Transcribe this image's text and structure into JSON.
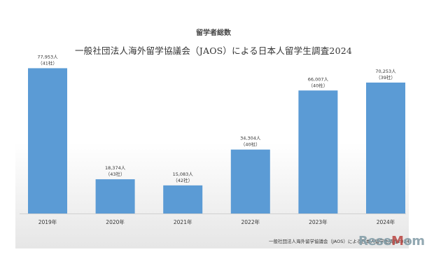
{
  "title": "留学者総数",
  "subtitle": "一般社団法人海外留学協議会（JAOS）による日本人留学生調査2024",
  "source": "一般社団法人海外留学協議会（JAOS）による日本人留学生調査2024",
  "watermark": "ReseMom",
  "colors": {
    "bar": "#5b9bd5",
    "label": "#333333"
  },
  "chart_data": {
    "type": "bar",
    "categories": [
      "2019年",
      "2020年",
      "2021年",
      "2022年",
      "2023年",
      "2024年"
    ],
    "values": [
      77953,
      18374,
      15083,
      34304,
      66007,
      70253
    ],
    "value_labels": [
      "77,953人",
      "18,374人",
      "15,083人",
      "34,304人",
      "66,007人",
      "70,253人"
    ],
    "sub_labels": [
      "（41社）",
      "（43社）",
      "（42社）",
      "（40社）",
      "（40社）",
      "（39社）"
    ],
    "title": "留学者総数",
    "ylim": [
      0,
      80000
    ],
    "grid": false,
    "legend": "none"
  }
}
